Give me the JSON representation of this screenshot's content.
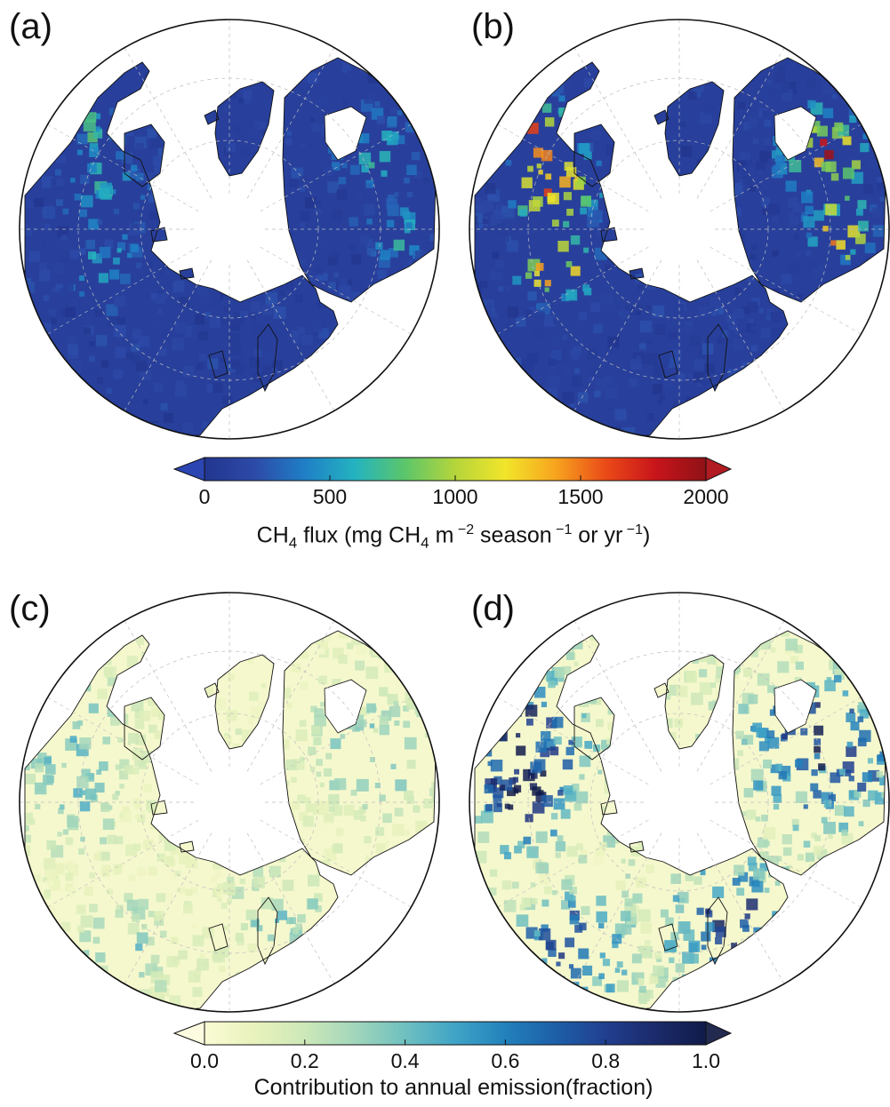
{
  "panels": [
    {
      "label": "(a)",
      "scheme": "flux"
    },
    {
      "label": "(b)",
      "scheme": "flux"
    },
    {
      "label": "(c)",
      "scheme": "fraction"
    },
    {
      "label": "(d)",
      "scheme": "fraction"
    }
  ],
  "colorbar_flux": {
    "ticks": [
      "0",
      "500",
      "1000",
      "1500",
      "2000"
    ],
    "title": {
      "pre": "CH",
      "sub1": "4",
      "mid": " flux (mg CH",
      "sub2": "4",
      "mid2": " m",
      "sup1": " −2",
      "mid3": " season",
      "sup2": " −1",
      "mid4": " or yr",
      "sup3": " −1",
      "post": ")"
    },
    "colors": [
      "#22368f",
      "#2d4aa8",
      "#1f7fc6",
      "#24b3c0",
      "#5cc66a",
      "#b5d53b",
      "#f2e52a",
      "#f7a41e",
      "#ea4a18",
      "#c8141b",
      "#8e1216"
    ],
    "under_color": "#2b45b3",
    "over_color": "#b11b22"
  },
  "colorbar_fraction": {
    "ticks": [
      "0.0",
      "0.2",
      "0.4",
      "0.6",
      "0.8",
      "1.0"
    ],
    "title": "Contribution to annual emission(fraction)",
    "colors": [
      "#fbfbd4",
      "#e8f2bc",
      "#cde8b8",
      "#a2d6bb",
      "#6fc0c0",
      "#3fa4c6",
      "#2281bb",
      "#1d5fa8",
      "#213f8f",
      "#1b2a6a",
      "#101b4a"
    ],
    "under_color": "#fdfbe0",
    "over_color": "#232a4f"
  },
  "colors": {
    "ocean": "#ffffff",
    "border": "#111111",
    "gridline": "#bdbdbd"
  }
}
